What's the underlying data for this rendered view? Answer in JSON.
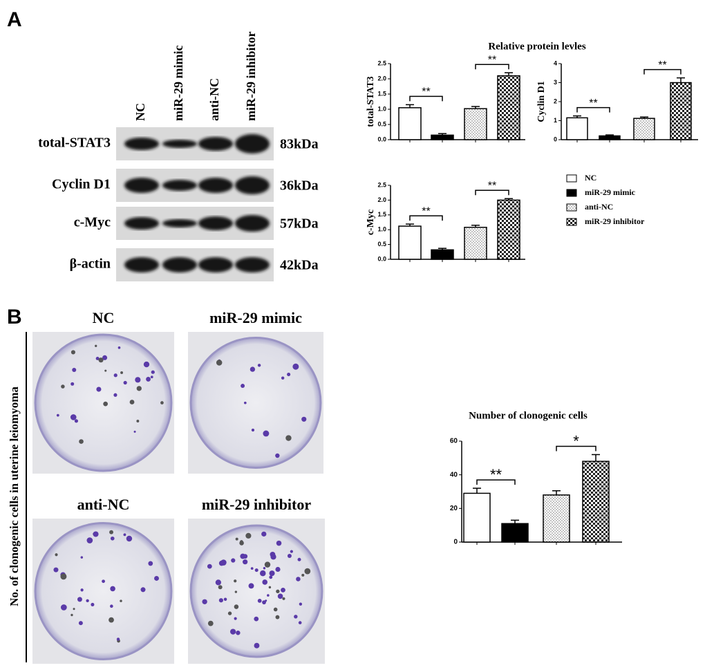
{
  "panel_a": {
    "label": "A",
    "lanes": [
      "NC",
      "miR-29 mimic",
      "anti-NC",
      "miR-29 inhibitor"
    ],
    "rows": [
      {
        "protein": "total-STAT3",
        "size": "83kDa"
      },
      {
        "protein": "Cyclin D1",
        "size": "36kDa"
      },
      {
        "protein": "c-Myc",
        "size": "57kDa"
      },
      {
        "protein": "β-actin",
        "size": "42kDa"
      }
    ],
    "chart_title": "Relative protein levles"
  },
  "legend": {
    "items": [
      {
        "name": "NC",
        "fill": "white"
      },
      {
        "name": "miR-29 mimic",
        "fill": "black"
      },
      {
        "name": "anti-NC",
        "fill": "dots"
      },
      {
        "name": "miR-29 inhibitor",
        "fill": "checker"
      }
    ]
  },
  "chart_data": [
    {
      "type": "bar",
      "y_label": "total-STAT3",
      "values": [
        1.05,
        0.15,
        1.02,
        2.1
      ],
      "errors": [
        0.1,
        0.05,
        0.07,
        0.1
      ],
      "ylim": [
        0,
        2.5
      ],
      "yticks": [
        {
          "value": 0,
          "label": "0.0"
        },
        {
          "value": 0.5,
          "label": "0.5"
        },
        {
          "value": 1,
          "label": "1.0"
        },
        {
          "value": 1.5,
          "label": "1.5"
        },
        {
          "value": 2,
          "label": "2.0"
        },
        {
          "value": 2.5,
          "label": "2.5"
        }
      ],
      "brackets": [
        {
          "bars": [
            0,
            1
          ],
          "label": "**"
        },
        {
          "bars": [
            2,
            3
          ],
          "label": "**"
        }
      ]
    },
    {
      "type": "bar",
      "y_label": "Cyclin D1",
      "values": [
        1.15,
        0.2,
        1.12,
        3.0
      ],
      "errors": [
        0.1,
        0.05,
        0.07,
        0.25
      ],
      "ylim": [
        0,
        4
      ],
      "yticks": [
        0,
        1,
        2,
        3,
        4
      ],
      "brackets": [
        {
          "bars": [
            0,
            1
          ],
          "label": "**"
        },
        {
          "bars": [
            2,
            3
          ],
          "label": "**"
        }
      ]
    },
    {
      "type": "bar",
      "y_label": "c-Myc",
      "values": [
        1.12,
        0.32,
        1.08,
        2.0
      ],
      "errors": [
        0.07,
        0.05,
        0.07,
        0.05
      ],
      "ylim": [
        0,
        2.5
      ],
      "yticks": [
        {
          "value": 0,
          "label": "0.0"
        },
        {
          "value": 0.5,
          "label": "0.5"
        },
        {
          "value": 1,
          "label": "1.0"
        },
        {
          "value": 1.5,
          "label": "1.5"
        },
        {
          "value": 2,
          "label": "2.0"
        },
        {
          "value": 2.5,
          "label": "2.5"
        }
      ],
      "brackets": [
        {
          "bars": [
            0,
            1
          ],
          "label": "**"
        },
        {
          "bars": [
            2,
            3
          ],
          "label": "**"
        }
      ]
    },
    {
      "type": "bar",
      "title": "Number of clonogenic cells",
      "values": [
        29,
        11,
        28,
        48
      ],
      "errors": [
        3,
        2,
        2.5,
        4
      ],
      "ylim": [
        0,
        60
      ],
      "yticks": [
        0,
        20,
        40,
        60
      ],
      "brackets": [
        {
          "bars": [
            0,
            1
          ],
          "label": "**"
        },
        {
          "bars": [
            2,
            3
          ],
          "label": "*"
        }
      ]
    }
  ],
  "panel_b": {
    "label": "B",
    "y_label": "No. of clonogenic cells in uterine leiomyoma",
    "plates": [
      "NC",
      "miR-29 mimic",
      "anti-NC",
      "miR-29 inhibitor"
    ]
  }
}
